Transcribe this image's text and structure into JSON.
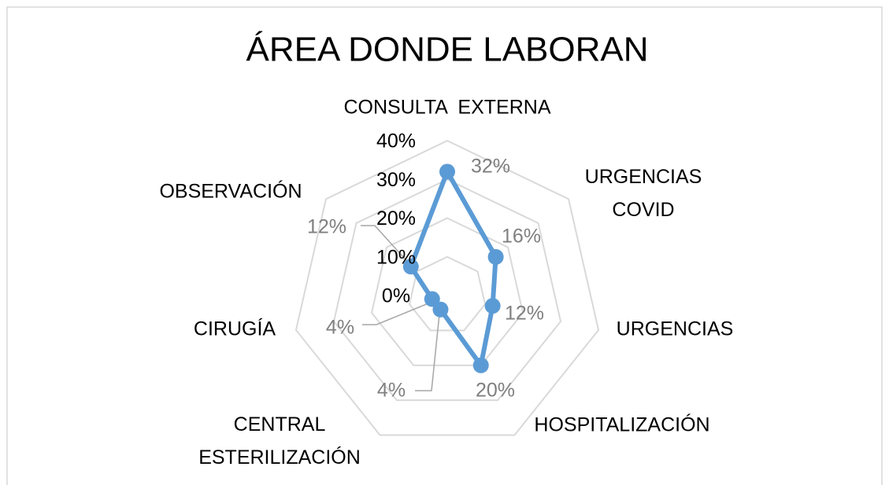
{
  "chart_data": {
    "type": "radar",
    "title": "ÁREA DONDE LABORAN",
    "categories": [
      "CONSULTA  EXTERNA",
      "URGENCIAS COVID",
      "URGENCIAS",
      "HOSPITALIZACIÓN",
      "CENTRAL ESTERILIZACIÓN",
      "CIRUGÍA",
      "OBSERVACIÓN"
    ],
    "values": [
      32,
      16,
      12,
      20,
      4,
      4,
      12
    ],
    "value_labels": [
      "32%",
      "16%",
      "12%",
      "20%",
      "4%",
      "4%",
      "12%"
    ],
    "color": "#5b9bd5",
    "ylim": [
      0,
      40
    ],
    "yticks": [
      {
        "value": 0,
        "label": "0%"
      },
      {
        "value": 10,
        "label": "10%"
      },
      {
        "value": 20,
        "label": "20%"
      },
      {
        "value": 30,
        "label": "30%"
      },
      {
        "value": 40,
        "label": "40%"
      }
    ],
    "grid": true
  }
}
